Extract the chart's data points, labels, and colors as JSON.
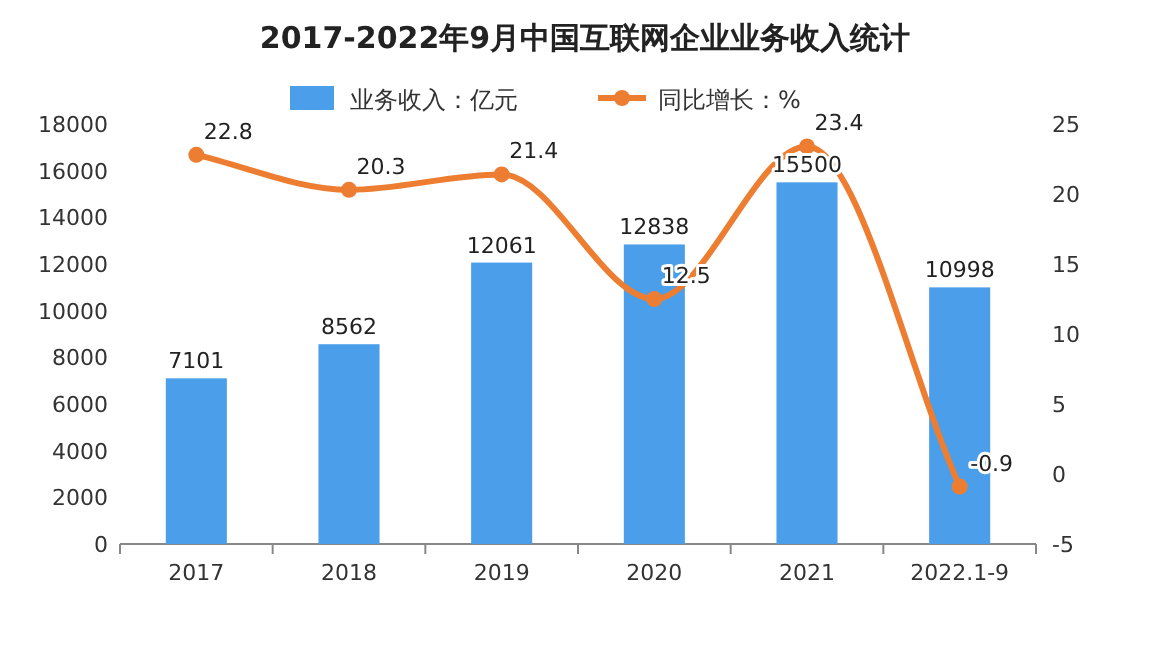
{
  "chart_data": {
    "type": "bar",
    "title": "2017-2022年9月中国互联网企业业务收入统计",
    "categories": [
      "2017",
      "2018",
      "2019",
      "2020",
      "2021",
      "2022.1-9"
    ],
    "series": [
      {
        "name": "业务收入：亿元",
        "color": "#4b9fea",
        "values": [
          7101,
          8562,
          12061,
          12838,
          15500,
          10998
        ]
      },
      {
        "name": "同比增长：%",
        "type": "line",
        "axis": "y2",
        "color": "#ed7d31",
        "marker": "circle",
        "values": [
          22.8,
          20.3,
          21.4,
          12.5,
          23.4,
          -0.9
        ]
      }
    ],
    "ylim": [
      0,
      18000
    ],
    "yticks": [
      0,
      2000,
      4000,
      6000,
      8000,
      10000,
      12000,
      14000,
      16000,
      18000
    ],
    "y2lim": [
      -5,
      25
    ],
    "y2ticks": [
      -5,
      0,
      5,
      10,
      15,
      20,
      25
    ],
    "data_labels": true,
    "legend": "top",
    "grid": false
  }
}
